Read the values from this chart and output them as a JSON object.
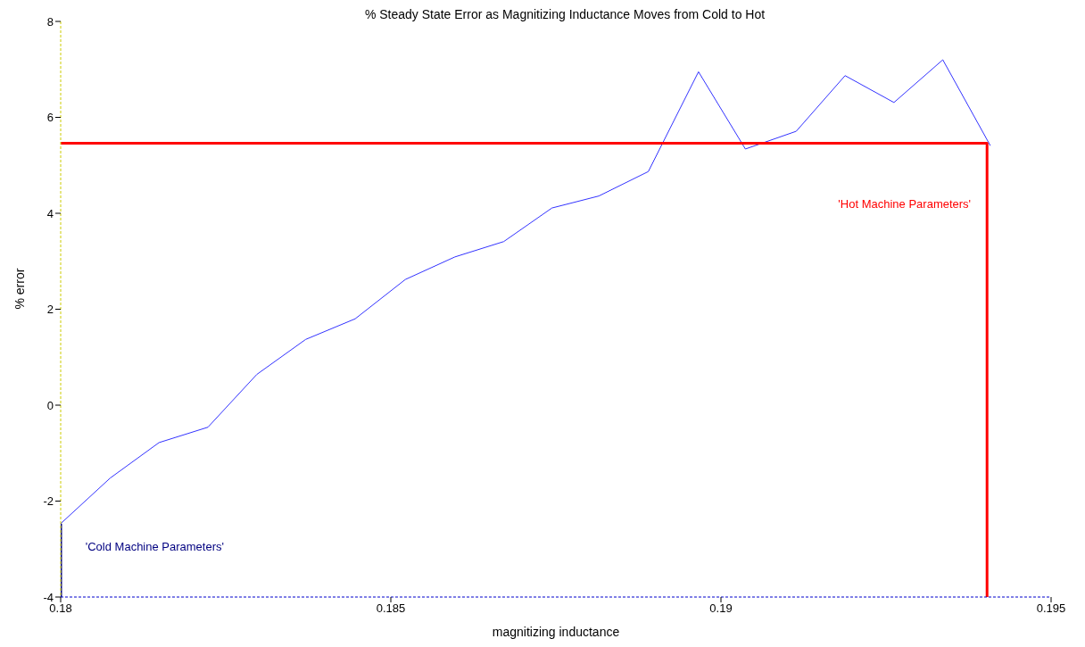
{
  "chart_data": {
    "type": "line",
    "title": "% Steady State Error as Magnitizing Inductance Moves from Cold to Hot",
    "xlabel": "magnitizing inductance",
    "ylabel": "% error",
    "series": [
      {
        "color": "#3333ff",
        "x": [
          0.18,
          0.18075,
          0.18149,
          0.18223,
          0.18297,
          0.18371,
          0.18446,
          0.18522,
          0.18597,
          0.18671,
          0.18744,
          0.18815,
          0.1889,
          0.18966,
          0.19037,
          0.19114,
          0.19188,
          0.19262,
          0.19336,
          0.19408
        ],
        "values": [
          -2.47,
          -1.52,
          -0.78,
          -0.46,
          0.64,
          1.37,
          1.8,
          2.62,
          3.09,
          3.41,
          4.11,
          4.36,
          4.87,
          6.95,
          5.34,
          5.71,
          6.87,
          6.31,
          7.2,
          5.41
        ]
      },
      {
        "color": "#ff0000",
        "x": [
          0.18,
          0.19403,
          0.19403
        ],
        "values": [
          5.46,
          5.46,
          -4
        ]
      },
      {
        "color": "#000080",
        "x": [
          0.18,
          0.18
        ],
        "values": [
          -4,
          -2.47
        ]
      }
    ],
    "annotations": [
      "'Hot Machine Parameters'",
      "'Cold Machine Parameters'"
    ],
    "xlim": [
      0.18,
      0.195
    ],
    "xticks": [
      0.18,
      0.185,
      0.19,
      0.195
    ],
    "ylim": [
      -4,
      8
    ],
    "yticks": [
      -4,
      -2,
      0,
      2,
      4,
      6,
      8
    ],
    "marker": "none",
    "line_style": "solid"
  }
}
